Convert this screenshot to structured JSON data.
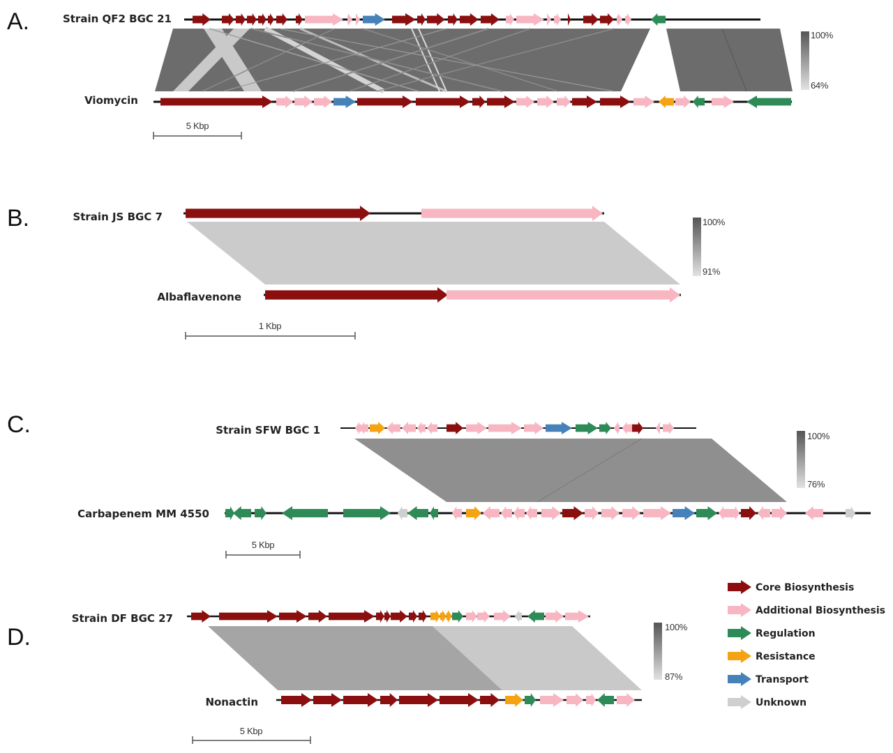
{
  "colors": {
    "core": "#8b0f0f",
    "additional": "#f7b6c2",
    "regulation": "#2e8a57",
    "resistance": "#f5a312",
    "transport": "#4682b9",
    "unknown": "#cfcfcf"
  },
  "legend": [
    {
      "key": "core",
      "label": "Core Biosynthesis"
    },
    {
      "key": "additional",
      "label": "Additional Biosynthesis"
    },
    {
      "key": "regulation",
      "label": "Regulation"
    },
    {
      "key": "resistance",
      "label": "Resistance"
    },
    {
      "key": "transport",
      "label": "Transport"
    },
    {
      "key": "unknown",
      "label": "Unknown"
    }
  ],
  "panels": [
    {
      "label": "A.",
      "query": "Strain QF2 BGC 21",
      "reference": "Viomycin",
      "scale": "5 Kbp",
      "identity_max": "100%",
      "identity_min": "64%",
      "query_genes": [
        "core",
        "core",
        "core",
        "core",
        "core",
        "core",
        "core",
        "core",
        "additional",
        "additional",
        "additional",
        "transport",
        "core",
        "core",
        "core",
        "core",
        "core",
        "core",
        "additional",
        "additional",
        "additional",
        "additional",
        "core",
        "core",
        "core",
        "additional",
        "additional",
        "regulation"
      ],
      "reference_genes": [
        "core",
        "additional",
        "additional",
        "additional",
        "transport",
        "core",
        "core",
        "core",
        "core",
        "additional",
        "additional",
        "additional",
        "core",
        "core",
        "additional",
        "resistance",
        "additional",
        "regulation",
        "additional",
        "regulation"
      ]
    },
    {
      "label": "B.",
      "query": "Strain JS BGC 7",
      "reference": "Albaflavenone",
      "scale": "1 Kbp",
      "identity_max": "100%",
      "identity_min": "91%",
      "query_genes": [
        "core",
        "additional"
      ],
      "reference_genes": [
        "core",
        "additional"
      ]
    },
    {
      "label": "C.",
      "query": "Strain SFW BGC 1",
      "reference": "Carbapenem MM 4550",
      "scale": "5 Kbp",
      "identity_max": "100%",
      "identity_min": "76%",
      "query_genes": [
        "additional",
        "additional",
        "resistance",
        "additional",
        "additional",
        "additional",
        "additional",
        "core",
        "additional",
        "additional",
        "additional",
        "transport",
        "regulation",
        "regulation",
        "additional",
        "additional",
        "core",
        "additional",
        "additional"
      ],
      "reference_genes": [
        "regulation",
        "regulation",
        "regulation",
        "regulation",
        "regulation",
        "unknown",
        "regulation",
        "regulation",
        "additional",
        "resistance",
        "additional",
        "additional",
        "additional",
        "additional",
        "additional",
        "core",
        "additional",
        "additional",
        "additional",
        "additional",
        "transport",
        "regulation",
        "additional",
        "additional",
        "core",
        "additional",
        "additional",
        "additional",
        "unknown"
      ]
    },
    {
      "label": "D.",
      "query": "Strain DF BGC 27",
      "reference": "Nonactin",
      "scale": "5 Kbp",
      "identity_max": "100%",
      "identity_min": "87%",
      "query_genes": [
        "core",
        "core",
        "core",
        "core",
        "core",
        "core",
        "core",
        "core",
        "core",
        "core",
        "resistance",
        "resistance",
        "resistance",
        "regulation",
        "additional",
        "additional",
        "additional",
        "unknown",
        "regulation",
        "additional",
        "additional"
      ],
      "reference_genes": [
        "core",
        "core",
        "core",
        "core",
        "core",
        "core",
        "core",
        "resistance",
        "regulation",
        "additional",
        "additional",
        "additional",
        "regulation",
        "additional"
      ]
    }
  ]
}
